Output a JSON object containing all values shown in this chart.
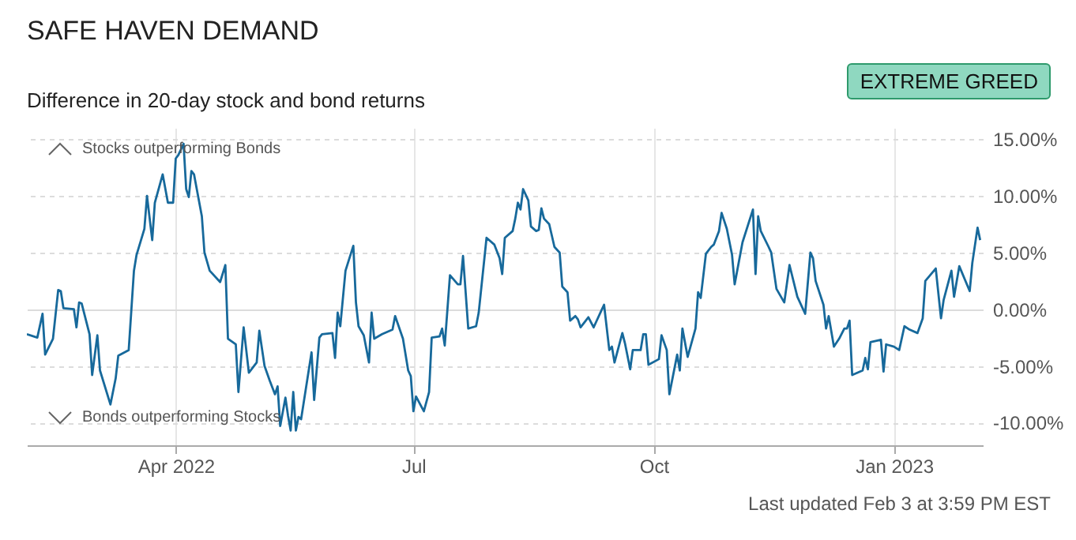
{
  "chart_data": {
    "type": "line",
    "title": "SAFE HAVEN DEMAND",
    "subtitle": "Difference in 20-day stock and bond returns",
    "annotations": [
      "EXTREME GREED",
      "Stocks outperforming Bonds",
      "Bonds outperforming Stocks",
      "Last updated Feb 3 at 3:59 PM EST"
    ],
    "x": [
      "2022-02-03",
      "2022-02-07",
      "2022-02-09",
      "2022-02-10",
      "2022-02-13",
      "2022-02-15",
      "2022-02-16",
      "2022-02-17",
      "2022-02-21",
      "2022-02-22",
      "2022-02-23",
      "2022-02-24",
      "2022-02-27",
      "2022-02-28",
      "2022-03-02",
      "2022-03-03",
      "2022-03-07",
      "2022-03-09",
      "2022-03-10",
      "2022-03-14",
      "2022-03-16",
      "2022-03-17",
      "2022-03-20",
      "2022-03-21",
      "2022-03-23",
      "2022-03-24",
      "2022-03-27",
      "2022-03-29",
      "2022-03-31",
      "2022-04-01",
      "2022-04-02",
      "2022-04-04",
      "2022-04-05",
      "2022-04-06",
      "2022-04-07",
      "2022-04-08",
      "2022-04-11",
      "2022-04-12",
      "2022-04-14",
      "2022-04-18",
      "2022-04-20",
      "2022-04-21",
      "2022-04-24",
      "2022-04-25",
      "2022-04-27",
      "2022-04-29",
      "2022-05-02",
      "2022-05-03",
      "2022-05-05",
      "2022-05-07",
      "2022-05-09",
      "2022-05-10",
      "2022-05-11",
      "2022-05-13",
      "2022-05-14",
      "2022-05-15",
      "2022-05-16",
      "2022-05-17",
      "2022-05-18",
      "2022-05-19",
      "2022-05-23",
      "2022-05-24",
      "2022-05-26",
      "2022-05-27",
      "2022-05-31",
      "2022-06-01",
      "2022-06-02",
      "2022-06-03",
      "2022-06-05",
      "2022-06-08",
      "2022-06-09",
      "2022-06-10",
      "2022-06-12",
      "2022-06-14",
      "2022-06-15",
      "2022-06-16",
      "2022-06-19",
      "2022-06-23",
      "2022-06-24",
      "2022-06-27",
      "2022-06-29",
      "2022-06-30",
      "2022-07-01",
      "2022-07-02",
      "2022-07-05",
      "2022-07-07",
      "2022-07-08",
      "2022-07-11",
      "2022-07-12",
      "2022-07-13",
      "2022-07-15",
      "2022-07-18",
      "2022-07-19",
      "2022-07-20",
      "2022-07-22",
      "2022-07-25",
      "2022-07-26",
      "2022-07-29",
      "2022-08-01",
      "2022-08-03",
      "2022-08-04",
      "2022-08-05",
      "2022-08-08",
      "2022-08-09",
      "2022-08-10",
      "2022-08-11",
      "2022-08-12",
      "2022-08-14",
      "2022-08-15",
      "2022-08-17",
      "2022-08-18",
      "2022-08-19",
      "2022-08-20",
      "2022-08-22",
      "2022-08-24",
      "2022-08-26",
      "2022-08-27",
      "2022-08-29",
      "2022-08-30",
      "2022-09-01",
      "2022-09-02",
      "2022-09-03",
      "2022-09-05",
      "2022-09-06",
      "2022-09-08",
      "2022-09-09",
      "2022-09-11",
      "2022-09-12",
      "2022-09-14",
      "2022-09-15",
      "2022-09-16",
      "2022-09-19",
      "2022-09-20",
      "2022-09-22",
      "2022-09-23",
      "2022-09-26",
      "2022-09-27",
      "2022-09-28",
      "2022-09-29",
      "2022-10-03",
      "2022-10-04",
      "2022-10-06",
      "2022-10-07",
      "2022-10-10",
      "2022-10-11",
      "2022-10-12",
      "2022-10-14",
      "2022-10-17",
      "2022-10-18",
      "2022-10-19",
      "2022-10-21",
      "2022-10-23",
      "2022-10-24",
      "2022-10-26",
      "2022-10-27",
      "2022-10-29",
      "2022-10-31",
      "2022-11-01",
      "2022-11-04",
      "2022-11-08",
      "2022-11-09",
      "2022-11-10",
      "2022-11-11",
      "2022-11-14",
      "2022-11-15",
      "2022-11-17",
      "2022-11-20",
      "2022-11-22",
      "2022-11-25",
      "2022-11-28",
      "2022-11-30",
      "2022-12-01",
      "2022-12-02",
      "2022-12-05",
      "2022-12-06",
      "2022-12-07",
      "2022-12-09",
      "2022-12-11",
      "2022-12-13",
      "2022-12-14",
      "2022-12-15",
      "2022-12-16",
      "2022-12-20",
      "2022-12-21",
      "2022-12-22",
      "2022-12-23",
      "2022-12-27",
      "2022-12-28",
      "2022-12-29",
      "2023-01-01",
      "2023-01-03",
      "2023-01-05",
      "2023-01-07",
      "2023-01-10",
      "2023-01-12",
      "2023-01-13",
      "2023-01-17",
      "2023-01-19",
      "2023-01-20",
      "2023-01-23",
      "2023-01-24",
      "2023-01-26",
      "2023-01-30",
      "2023-01-31",
      "2023-02-02",
      "2023-02-03"
    ],
    "series": [
      {
        "color": "#17699b",
        "values": [
          -2.2,
          -2.5,
          -0.4,
          -4.0,
          -2.6,
          1.7,
          1.6,
          0.1,
          0.0,
          -1.6,
          0.6,
          0.5,
          -2.2,
          -5.8,
          -2.3,
          -5.4,
          -8.4,
          -6.1,
          -4.1,
          -3.6,
          3.4,
          4.8,
          7.1,
          10.0,
          6.1,
          9.4,
          11.9,
          9.4,
          9.4,
          13.3,
          13.6,
          14.6,
          10.6,
          9.9,
          12.2,
          11.9,
          8.2,
          5.0,
          3.4,
          2.4,
          3.9,
          -2.6,
          -3.1,
          -7.3,
          -1.6,
          -5.6,
          -4.7,
          -1.9,
          -5.0,
          -6.3,
          -7.5,
          -6.8,
          -10.3,
          -7.8,
          -9.4,
          -10.7,
          -7.3,
          -10.7,
          -9.5,
          -9.7,
          -3.8,
          -8.0,
          -2.5,
          -2.2,
          -2.1,
          -4.3,
          -0.3,
          -1.5,
          3.4,
          5.6,
          0.6,
          -1.5,
          -2.3,
          -4.7,
          -0.3,
          -2.6,
          -2.2,
          -1.8,
          -0.6,
          -2.6,
          -5.4,
          -5.9,
          -9.0,
          -7.7,
          -9.0,
          -7.3,
          -2.5,
          -2.4,
          -1.7,
          -3.2,
          3.0,
          2.2,
          2.2,
          4.7,
          -1.7,
          -1.5,
          -0.3,
          6.3,
          5.7,
          4.5,
          3.1,
          6.3,
          6.9,
          8.0,
          9.4,
          8.8,
          10.6,
          9.6,
          7.3,
          6.9,
          7.0,
          8.9,
          8.0,
          7.5,
          5.5,
          5.0,
          2.0,
          1.5,
          -1.0,
          -0.6,
          -0.9,
          -1.6,
          -1.0,
          -0.7,
          -1.6,
          -1.1,
          -0.1,
          0.4,
          -3.6,
          -3.3,
          -4.7,
          -2.1,
          -3.0,
          -5.3,
          -3.6,
          -3.6,
          -2.2,
          -2.2,
          -4.9,
          -4.4,
          -2.3,
          -3.6,
          -7.5,
          -4.0,
          -5.4,
          -1.7,
          -4.2,
          -1.7,
          1.5,
          1.0,
          4.9,
          5.5,
          5.7,
          6.9,
          8.5,
          7.1,
          4.8,
          2.2,
          5.9,
          8.8,
          3.1,
          8.2,
          6.9,
          5.5,
          5.0,
          1.8,
          0.6,
          3.9,
          1.1,
          -0.4,
          5.0,
          4.5,
          2.5,
          0.4,
          -1.7,
          -0.6,
          -3.3,
          -2.6,
          -1.7,
          -1.7,
          -1.0,
          -5.8,
          -5.4,
          -4.3,
          -5.3,
          -2.9,
          -2.7,
          -5.5,
          -3.1,
          -3.3,
          -3.6,
          -1.5,
          -1.8,
          -2.1,
          -0.8,
          2.5,
          3.6,
          -0.8,
          0.8,
          3.4,
          1.1,
          3.8,
          1.6,
          4.1,
          7.2,
          6.1
        ]
      }
    ],
    "xlim": [
      "2022-02-03",
      "2023-02-04"
    ],
    "ylim": [
      -12,
      16
    ],
    "xticks": [
      {
        "value": "2022-04-01",
        "label": "Apr 2022"
      },
      {
        "value": "2022-07-01",
        "label": "Jul"
      },
      {
        "value": "2022-10-01",
        "label": "Oct"
      },
      {
        "value": "2023-01-01",
        "label": "Jan 2023"
      }
    ],
    "yticks": [
      {
        "value": -10,
        "label": "-10.00%"
      },
      {
        "value": -5,
        "label": "-5.00%"
      },
      {
        "value": 0,
        "label": "0.00%"
      },
      {
        "value": 5,
        "label": "5.00%"
      },
      {
        "value": 10,
        "label": "10.00%"
      },
      {
        "value": 15,
        "label": "15.00%"
      }
    ],
    "grid": true,
    "marker": "none",
    "line_style": "solid"
  }
}
